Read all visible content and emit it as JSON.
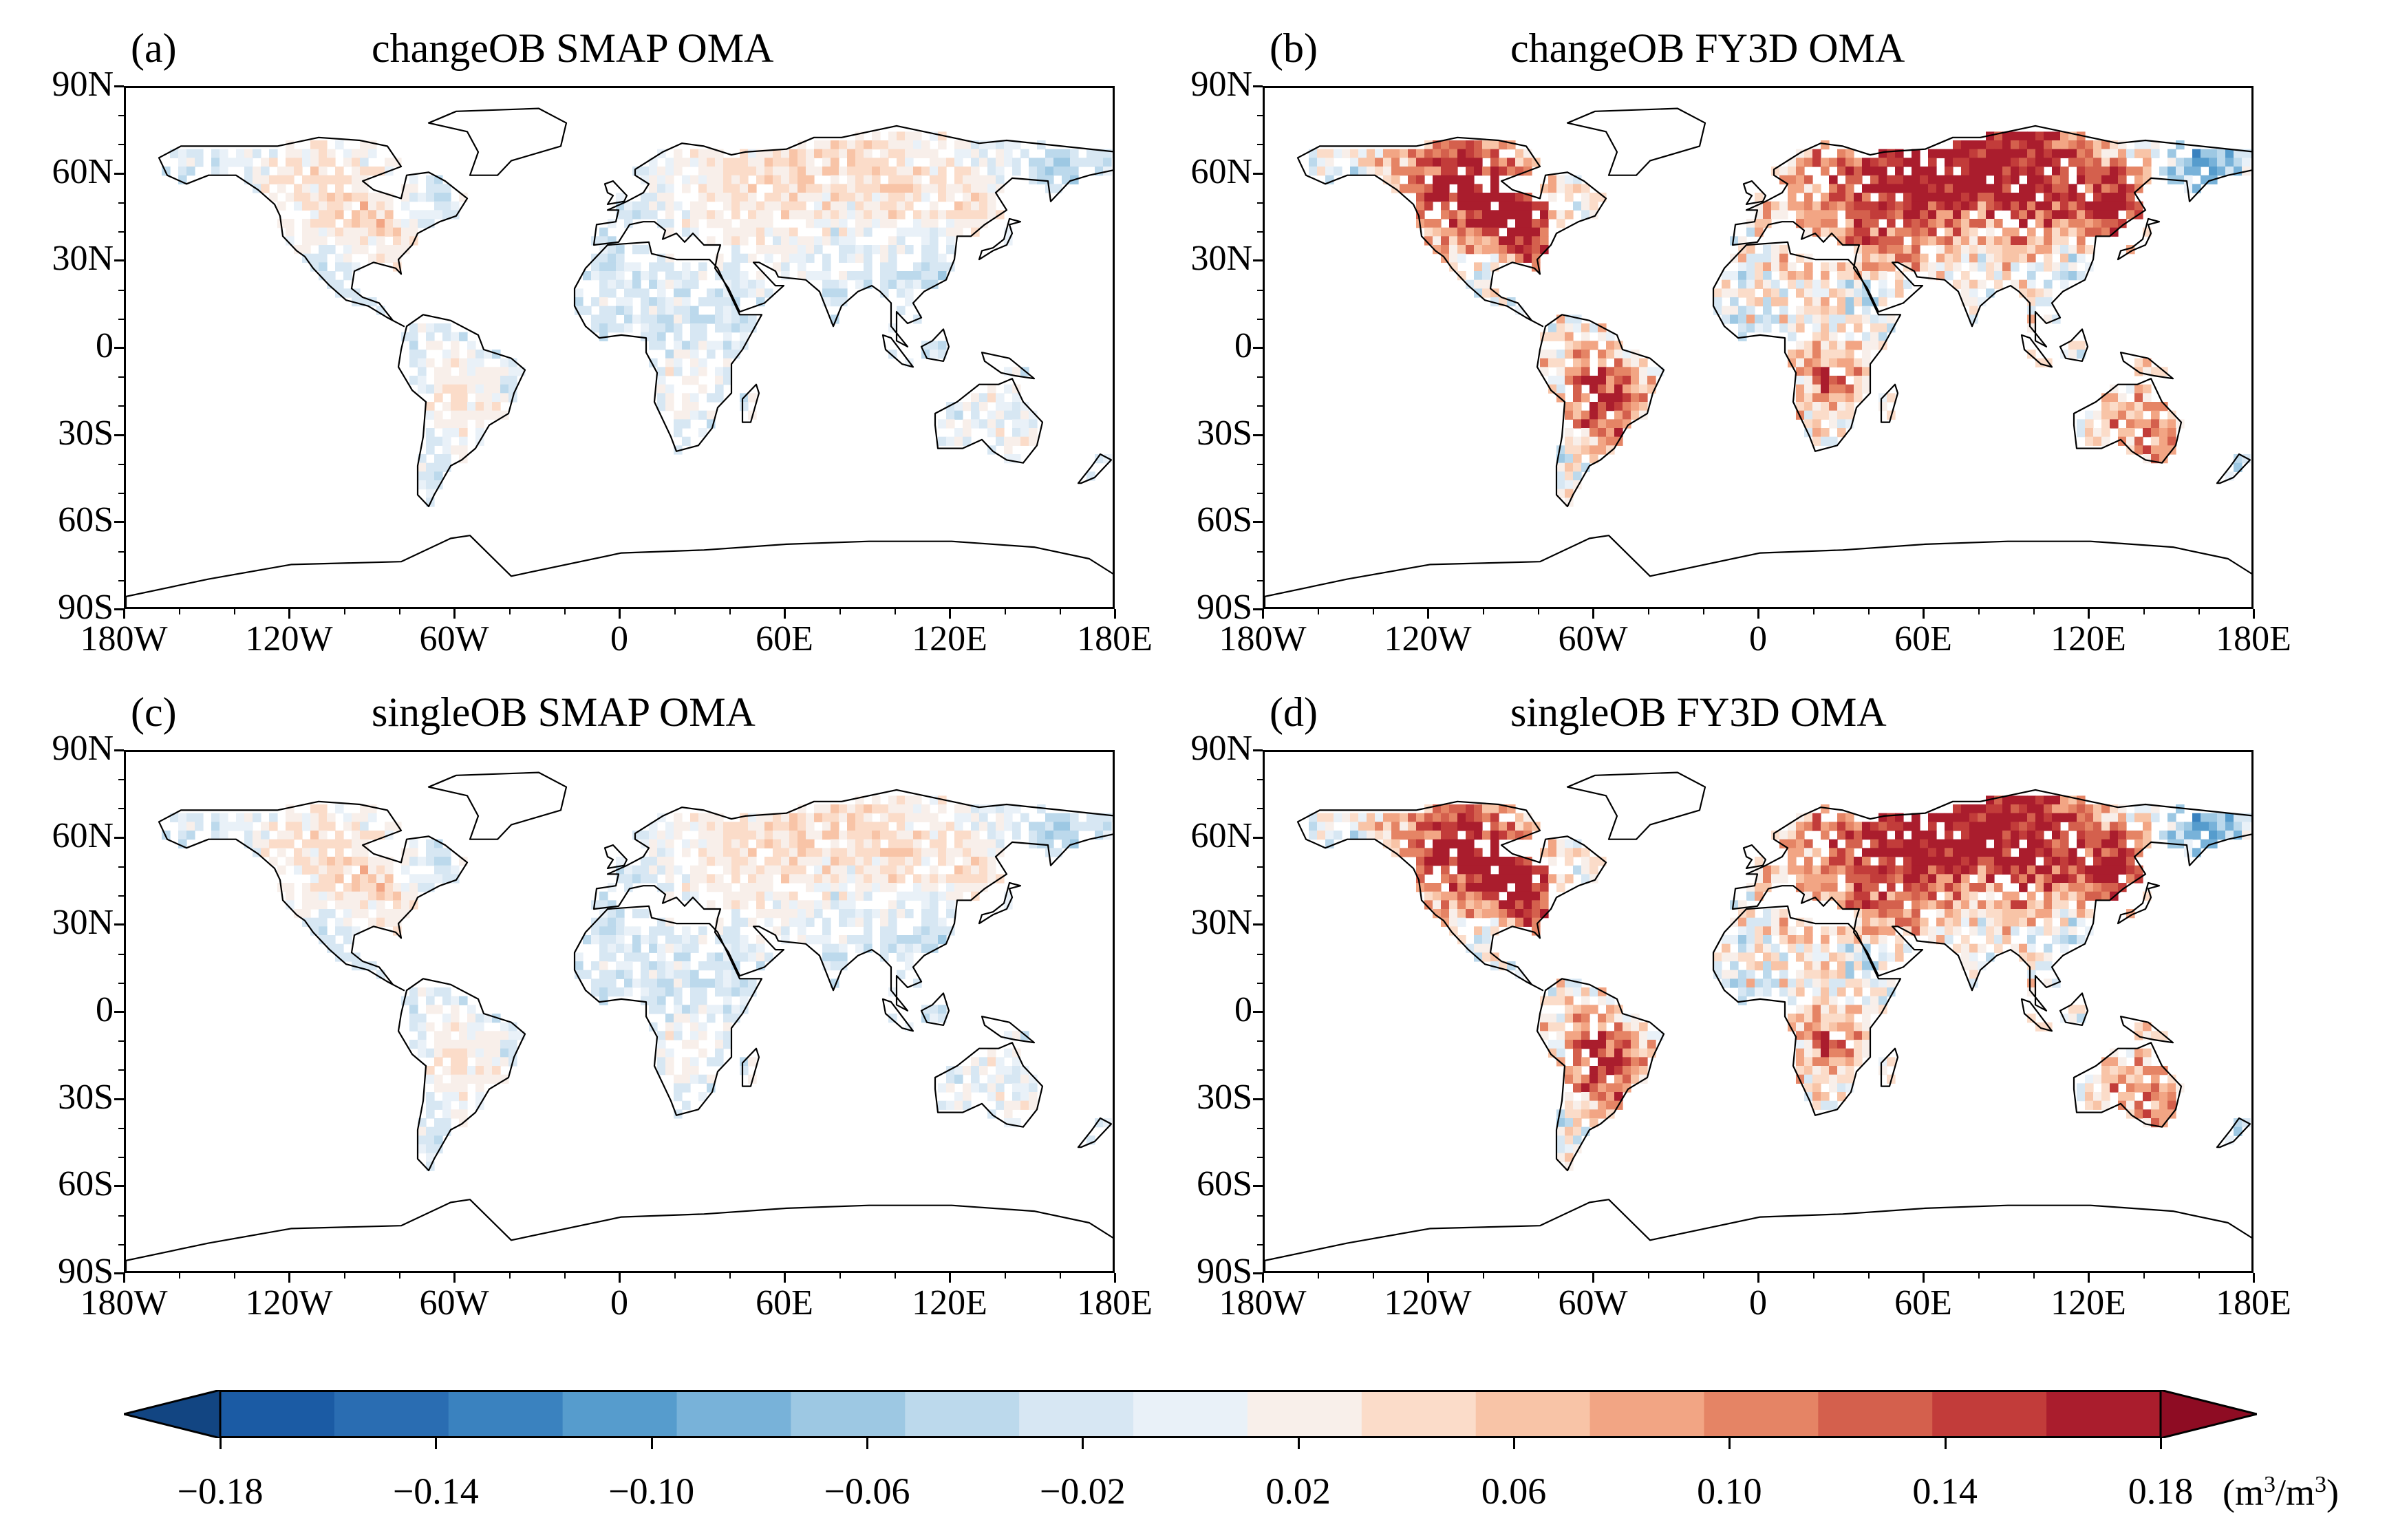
{
  "panels": [
    {
      "label": "(a)",
      "title": "changeOB SMAP OMA",
      "intensity": 0.35,
      "bias": -0.25
    },
    {
      "label": "(b)",
      "title": "changeOB FY3D OMA",
      "intensity": 1.0,
      "bias": 0.35
    },
    {
      "label": "(c)",
      "title": "singleOB SMAP OMA",
      "intensity": 0.35,
      "bias": -0.25
    },
    {
      "label": "(d)",
      "title": "singleOB FY3D OMA",
      "intensity": 1.0,
      "bias": 0.35
    }
  ],
  "yticks": [
    "90N",
    "60N",
    "30N",
    "0",
    "30S",
    "60S",
    "90S"
  ],
  "xticks": [
    "180W",
    "120W",
    "60W",
    "0",
    "60E",
    "120E",
    "180E"
  ],
  "colorbar": {
    "labels": [
      "−0.18",
      "−0.14",
      "−0.10",
      "−0.06",
      "−0.02",
      "0.02",
      "0.06",
      "0.10",
      "0.14",
      "0.18"
    ],
    "unit_base": "(m",
    "unit_sup1": "3",
    "unit_mid": "/m",
    "unit_sup2": "3",
    "unit_end": ")",
    "colors": [
      "#1b5ba4",
      "#2a6db2",
      "#3a82bf",
      "#569ccd",
      "#78b2d9",
      "#9dc8e3",
      "#bcd9ec",
      "#d7e7f3",
      "#e9f1f8",
      "#f8efea",
      "#fbdcc9",
      "#f8c4a7",
      "#f2a584",
      "#e58465",
      "#d4604d",
      "#c23c3a",
      "#aa1d2d"
    ],
    "under_color": "#124582",
    "over_color": "#8e0c23"
  }
}
